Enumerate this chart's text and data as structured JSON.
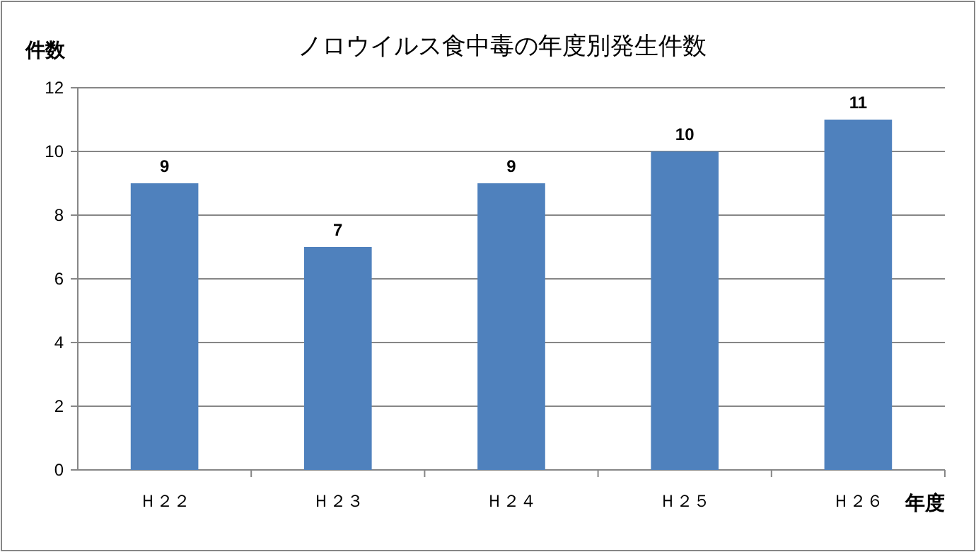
{
  "chart_data": {
    "type": "bar",
    "title": "ノロウイルス食中毒の年度別発生件数",
    "ylabel": "件数",
    "xlabel": "年度",
    "categories": [
      "Ｈ２２",
      "Ｈ２３",
      "Ｈ２４",
      "Ｈ２５",
      "Ｈ２６"
    ],
    "values": [
      9,
      7,
      9,
      10,
      11
    ],
    "color": "#4f81bd",
    "ylim": [
      0,
      12
    ],
    "yticks": [
      0,
      2,
      4,
      6,
      8,
      10,
      12
    ],
    "grid": "y",
    "data_labels": true
  }
}
